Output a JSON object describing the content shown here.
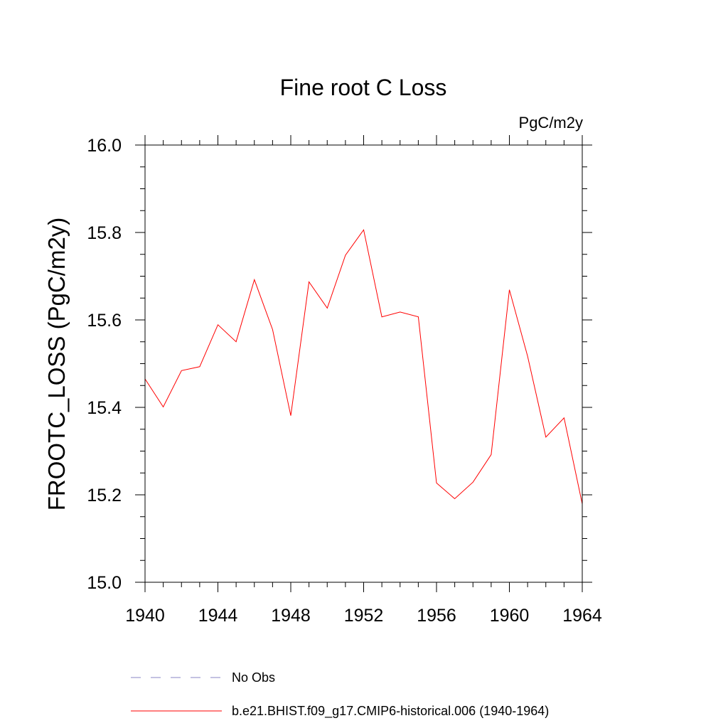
{
  "chart_data": {
    "type": "line",
    "title": "Fine root C Loss",
    "units_label": "PgC/m2y",
    "xlabel": "",
    "ylabel": "FROOTC_LOSS  (PgC/m2y)",
    "xlim": [
      1940,
      1964
    ],
    "ylim": [
      15.0,
      16.0
    ],
    "x_ticks": [
      1940,
      1944,
      1948,
      1952,
      1956,
      1960,
      1964
    ],
    "x_tick_labels": [
      "1940",
      "1944",
      "1948",
      "1952",
      "1956",
      "1960",
      "1964"
    ],
    "y_ticks": [
      15.0,
      15.2,
      15.4,
      15.6,
      15.8,
      16.0
    ],
    "y_tick_labels": [
      "15.0",
      "15.2",
      "15.4",
      "15.6",
      "15.8",
      "16.0"
    ],
    "grid": false,
    "legend_position": "bottom",
    "series": [
      {
        "name": "b.e21.BHIST.f09_g17.CMIP6-historical.006 (1940-1964)",
        "color": "#ff0000",
        "style": "solid",
        "x": [
          1940,
          1941,
          1942,
          1943,
          1944,
          1945,
          1946,
          1947,
          1948,
          1949,
          1950,
          1951,
          1952,
          1953,
          1954,
          1955,
          1956,
          1957,
          1958,
          1959,
          1960,
          1961,
          1962,
          1963,
          1964
        ],
        "y": [
          15.465,
          15.401,
          15.484,
          15.493,
          15.589,
          15.55,
          15.692,
          15.578,
          15.381,
          15.687,
          15.627,
          15.748,
          15.806,
          15.607,
          15.618,
          15.607,
          15.227,
          15.191,
          15.229,
          15.292,
          15.669,
          15.517,
          15.332,
          15.376,
          15.179
        ]
      }
    ],
    "legend": [
      {
        "label": "No Obs",
        "color": "#8a85c4",
        "style": "dashed"
      },
      {
        "label": "b.e21.BHIST.f09_g17.CMIP6-historical.006 (1940-1964)",
        "color": "#ff0000",
        "style": "solid"
      }
    ]
  }
}
